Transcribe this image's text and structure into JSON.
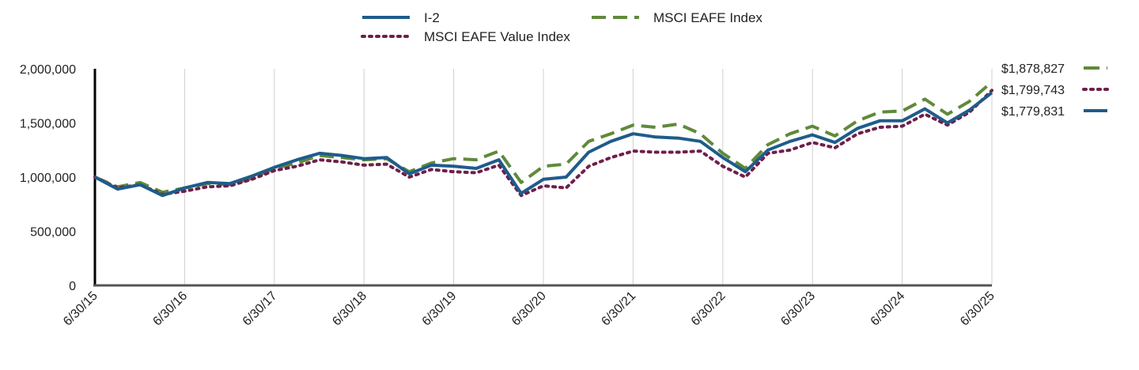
{
  "chart_data": {
    "type": "line",
    "title": "",
    "xlabel": "",
    "ylabel": "",
    "ylim": [
      0,
      2000000
    ],
    "xlim": [
      "2015-06-30",
      "2025-06-30"
    ],
    "grid": "vertical",
    "legend_position": "top",
    "x_tick_labels": [
      "6/30/15",
      "6/30/16",
      "6/30/17",
      "6/30/18",
      "6/30/19",
      "6/30/20",
      "6/30/21",
      "6/30/22",
      "6/30/23",
      "6/30/24",
      "6/30/25"
    ],
    "y_tick_labels": [
      "0",
      "500,000",
      "1,000,000",
      "1,500,000",
      "2,000,000"
    ],
    "y_ticks": [
      0,
      500000,
      1000000,
      1500000,
      2000000
    ],
    "series": [
      {
        "name": "I-2",
        "color": "#1f5c8b",
        "style": "solid",
        "end_label": "$1,779,831",
        "points": [
          [
            "2015-06-30",
            1000000
          ],
          [
            "2015-09-30",
            890000
          ],
          [
            "2015-12-31",
            930000
          ],
          [
            "2016-03-31",
            830000
          ],
          [
            "2016-06-30",
            900000
          ],
          [
            "2016-09-30",
            950000
          ],
          [
            "2016-12-31",
            940000
          ],
          [
            "2017-03-31",
            1010000
          ],
          [
            "2017-06-30",
            1090000
          ],
          [
            "2017-09-30",
            1160000
          ],
          [
            "2017-12-31",
            1220000
          ],
          [
            "2018-03-31",
            1200000
          ],
          [
            "2018-06-30",
            1170000
          ],
          [
            "2018-09-30",
            1180000
          ],
          [
            "2018-12-31",
            1030000
          ],
          [
            "2019-03-31",
            1110000
          ],
          [
            "2019-06-30",
            1100000
          ],
          [
            "2019-09-30",
            1080000
          ],
          [
            "2019-12-31",
            1160000
          ],
          [
            "2020-03-31",
            850000
          ],
          [
            "2020-06-30",
            980000
          ],
          [
            "2020-09-30",
            1000000
          ],
          [
            "2020-12-31",
            1230000
          ],
          [
            "2021-03-31",
            1330000
          ],
          [
            "2021-06-30",
            1400000
          ],
          [
            "2021-09-30",
            1370000
          ],
          [
            "2021-12-31",
            1360000
          ],
          [
            "2022-03-31",
            1330000
          ],
          [
            "2022-06-30",
            1180000
          ],
          [
            "2022-09-30",
            1050000
          ],
          [
            "2022-12-31",
            1250000
          ],
          [
            "2023-03-31",
            1330000
          ],
          [
            "2023-06-30",
            1390000
          ],
          [
            "2023-09-30",
            1320000
          ],
          [
            "2023-12-31",
            1450000
          ],
          [
            "2024-03-31",
            1520000
          ],
          [
            "2024-06-30",
            1520000
          ],
          [
            "2024-09-30",
            1630000
          ],
          [
            "2024-12-31",
            1500000
          ],
          [
            "2025-03-31",
            1620000
          ],
          [
            "2025-06-30",
            1779831
          ]
        ]
      },
      {
        "name": "MSCI EAFE Index",
        "color": "#5f8a3a",
        "style": "dashed",
        "end_label": "$1,878,827",
        "points": [
          [
            "2015-06-30",
            1000000
          ],
          [
            "2015-09-30",
            910000
          ],
          [
            "2015-12-31",
            950000
          ],
          [
            "2016-03-31",
            860000
          ],
          [
            "2016-06-30",
            900000
          ],
          [
            "2016-09-30",
            940000
          ],
          [
            "2016-12-31",
            930000
          ],
          [
            "2017-03-31",
            990000
          ],
          [
            "2017-06-30",
            1080000
          ],
          [
            "2017-09-30",
            1130000
          ],
          [
            "2017-12-31",
            1200000
          ],
          [
            "2018-03-31",
            1180000
          ],
          [
            "2018-06-30",
            1160000
          ],
          [
            "2018-09-30",
            1170000
          ],
          [
            "2018-12-31",
            1050000
          ],
          [
            "2019-03-31",
            1130000
          ],
          [
            "2019-06-30",
            1170000
          ],
          [
            "2019-09-30",
            1160000
          ],
          [
            "2019-12-31",
            1240000
          ],
          [
            "2020-03-31",
            950000
          ],
          [
            "2020-06-30",
            1100000
          ],
          [
            "2020-09-30",
            1120000
          ],
          [
            "2020-12-31",
            1330000
          ],
          [
            "2021-03-31",
            1400000
          ],
          [
            "2021-06-30",
            1480000
          ],
          [
            "2021-09-30",
            1460000
          ],
          [
            "2021-12-31",
            1490000
          ],
          [
            "2022-03-31",
            1400000
          ],
          [
            "2022-06-30",
            1220000
          ],
          [
            "2022-09-30",
            1080000
          ],
          [
            "2022-12-31",
            1300000
          ],
          [
            "2023-03-31",
            1400000
          ],
          [
            "2023-06-30",
            1470000
          ],
          [
            "2023-09-30",
            1380000
          ],
          [
            "2023-12-31",
            1520000
          ],
          [
            "2024-03-31",
            1600000
          ],
          [
            "2024-06-30",
            1610000
          ],
          [
            "2024-09-30",
            1720000
          ],
          [
            "2024-12-31",
            1580000
          ],
          [
            "2025-03-31",
            1700000
          ],
          [
            "2025-06-30",
            1878827
          ]
        ]
      },
      {
        "name": "MSCI EAFE Value Index",
        "color": "#6e1f4a",
        "style": "dotted",
        "end_label": "$1,799,743",
        "points": [
          [
            "2015-06-30",
            1000000
          ],
          [
            "2015-09-30",
            900000
          ],
          [
            "2015-12-31",
            930000
          ],
          [
            "2016-03-31",
            840000
          ],
          [
            "2016-06-30",
            870000
          ],
          [
            "2016-09-30",
            910000
          ],
          [
            "2016-12-31",
            920000
          ],
          [
            "2017-03-31",
            980000
          ],
          [
            "2017-06-30",
            1060000
          ],
          [
            "2017-09-30",
            1100000
          ],
          [
            "2017-12-31",
            1160000
          ],
          [
            "2018-03-31",
            1140000
          ],
          [
            "2018-06-30",
            1110000
          ],
          [
            "2018-09-30",
            1120000
          ],
          [
            "2018-12-31",
            1000000
          ],
          [
            "2019-03-31",
            1070000
          ],
          [
            "2019-06-30",
            1050000
          ],
          [
            "2019-09-30",
            1040000
          ],
          [
            "2019-12-31",
            1110000
          ],
          [
            "2020-03-31",
            830000
          ],
          [
            "2020-06-30",
            920000
          ],
          [
            "2020-09-30",
            900000
          ],
          [
            "2020-12-31",
            1100000
          ],
          [
            "2021-03-31",
            1180000
          ],
          [
            "2021-06-30",
            1240000
          ],
          [
            "2021-09-30",
            1230000
          ],
          [
            "2021-12-31",
            1230000
          ],
          [
            "2022-03-31",
            1240000
          ],
          [
            "2022-06-30",
            1100000
          ],
          [
            "2022-09-30",
            1000000
          ],
          [
            "2022-12-31",
            1220000
          ],
          [
            "2023-03-31",
            1250000
          ],
          [
            "2023-06-30",
            1320000
          ],
          [
            "2023-09-30",
            1270000
          ],
          [
            "2023-12-31",
            1400000
          ],
          [
            "2024-03-31",
            1460000
          ],
          [
            "2024-06-30",
            1470000
          ],
          [
            "2024-09-30",
            1580000
          ],
          [
            "2024-12-31",
            1480000
          ],
          [
            "2025-03-31",
            1600000
          ],
          [
            "2025-06-30",
            1799743
          ]
        ]
      }
    ]
  }
}
